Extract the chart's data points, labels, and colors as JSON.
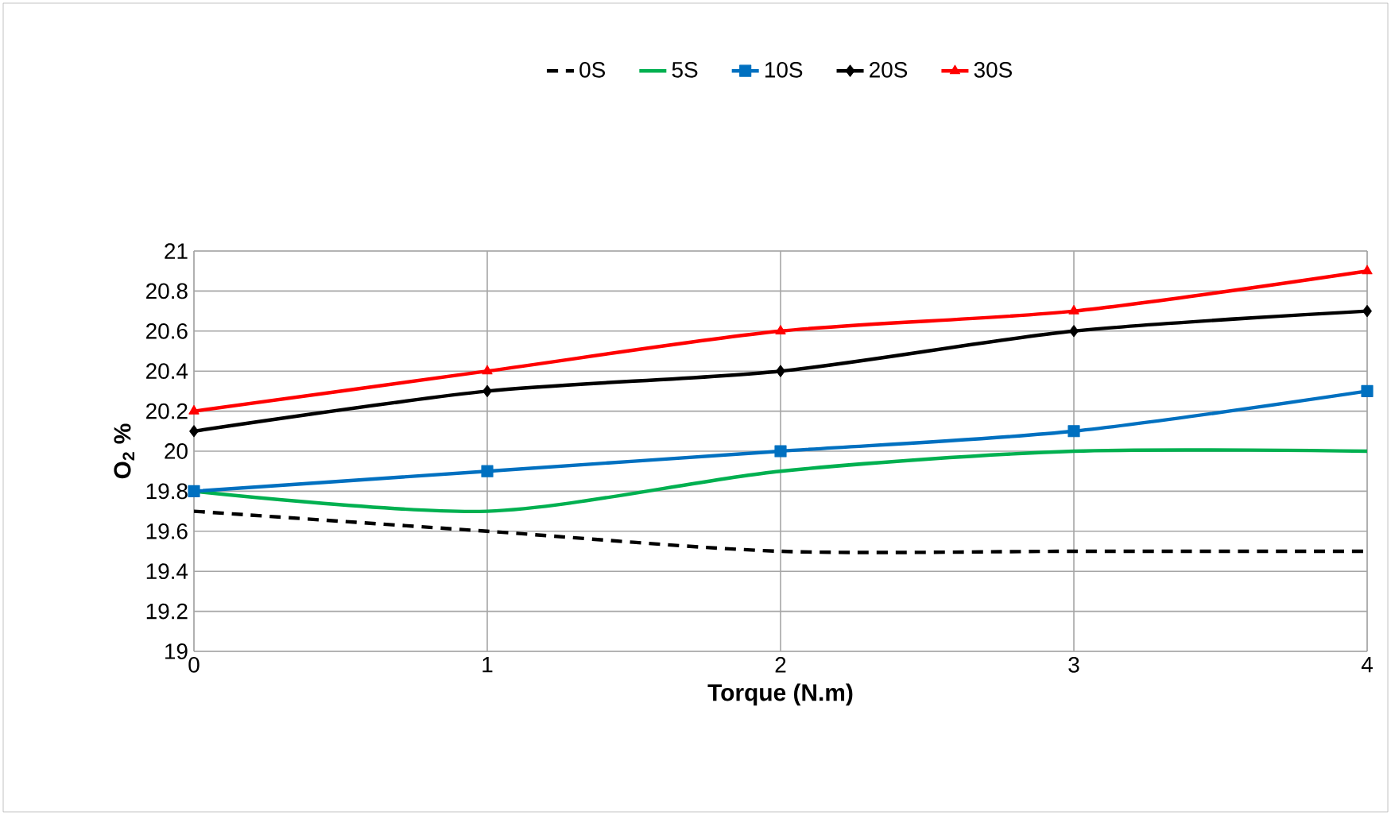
{
  "chart_data": {
    "type": "line",
    "xlabel": "Torque  (N.m)",
    "ylabel": "O$_{2}$ %",
    "x": [
      0,
      1,
      2,
      3,
      4
    ],
    "xlim": [
      0,
      4
    ],
    "xticks": [
      0,
      1,
      2,
      3,
      4
    ],
    "ylim": [
      19,
      21
    ],
    "yticks": [
      19,
      19.2,
      19.4,
      19.6,
      19.8,
      20,
      20.2,
      20.4,
      20.6,
      20.8,
      21
    ],
    "grid": true,
    "legend": "top",
    "series": [
      {
        "name": "0S",
        "color": "#000000",
        "marker": "none",
        "line_style": "dashed",
        "values": [
          19.7,
          19.6,
          19.5,
          19.5,
          19.5
        ]
      },
      {
        "name": "5S",
        "color": "#00b050",
        "marker": "none",
        "line_style": "solid",
        "values": [
          19.8,
          19.7,
          19.9,
          20.0,
          20.0
        ]
      },
      {
        "name": "10S",
        "color": "#0070c0",
        "marker": "square",
        "line_style": "solid",
        "values": [
          19.8,
          19.9,
          20.0,
          20.1,
          20.3
        ]
      },
      {
        "name": "20S",
        "color": "#000000",
        "marker": "diamond",
        "line_style": "solid",
        "values": [
          20.1,
          20.3,
          20.4,
          20.6,
          20.7
        ]
      },
      {
        "name": "30S",
        "color": "#ff0000",
        "marker": "triangle",
        "line_style": "solid",
        "values": [
          20.2,
          20.4,
          20.6,
          20.7,
          20.9
        ]
      }
    ]
  }
}
